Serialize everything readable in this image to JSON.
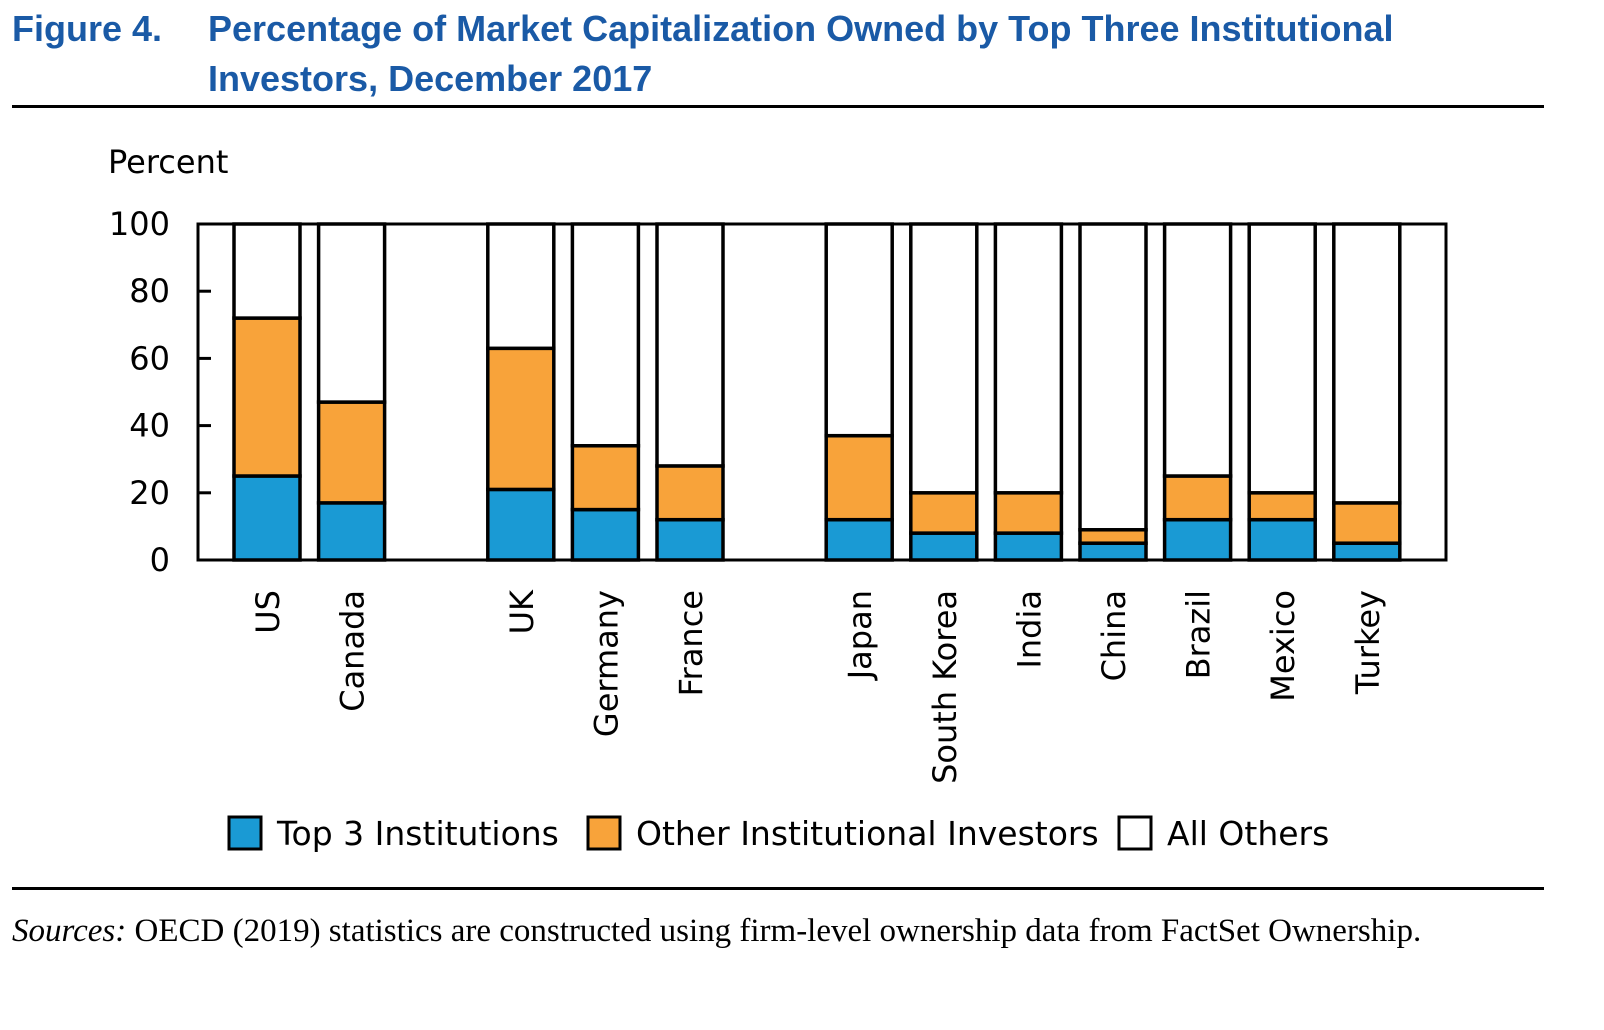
{
  "figure": {
    "number": "Figure 4.",
    "title": "Percentage of Market Capitalization Owned by Top Three Institutional Investors, December 2017"
  },
  "source": {
    "label": "Sources:",
    "text": "OECD (2019) statistics are constructed using firm-level ownership data from FactSet Ownership."
  },
  "colors": {
    "title": "#1a5aa6",
    "top3": "#1a9ad4",
    "other_institutional": "#f8a33a",
    "all_others": "#ffffff"
  },
  "chart_data": {
    "type": "bar",
    "stacked": true,
    "title": "Percentage of Market Capitalization Owned by Top Three Institutional Investors, December 2017",
    "ylabel": "Percent",
    "xlabel": "",
    "ylim": [
      0,
      100
    ],
    "yticks": [
      0,
      20,
      40,
      60,
      80,
      100
    ],
    "grid": false,
    "legend_position": "bottom",
    "groups": [
      [
        "US",
        "Canada"
      ],
      [
        "UK",
        "Germany",
        "France"
      ],
      [
        "Japan",
        "South Korea",
        "India",
        "China",
        "Brazil",
        "Mexico",
        "Turkey"
      ]
    ],
    "categories": [
      "US",
      "Canada",
      "UK",
      "Germany",
      "France",
      "Japan",
      "South Korea",
      "India",
      "China",
      "Brazil",
      "Mexico",
      "Turkey"
    ],
    "series": [
      {
        "name": "Top 3 Institutions",
        "color": "#1a9ad4",
        "values": [
          25,
          17,
          21,
          15,
          12,
          12,
          8,
          8,
          5,
          12,
          12,
          5
        ]
      },
      {
        "name": "Other Institutional Investors",
        "color": "#f8a33a",
        "values": [
          47,
          30,
          42,
          19,
          16,
          25,
          12,
          12,
          4,
          13,
          8,
          12
        ]
      },
      {
        "name": "All Others",
        "color": "#ffffff",
        "values": [
          28,
          53,
          37,
          66,
          72,
          63,
          80,
          80,
          91,
          75,
          80,
          83
        ]
      }
    ]
  }
}
